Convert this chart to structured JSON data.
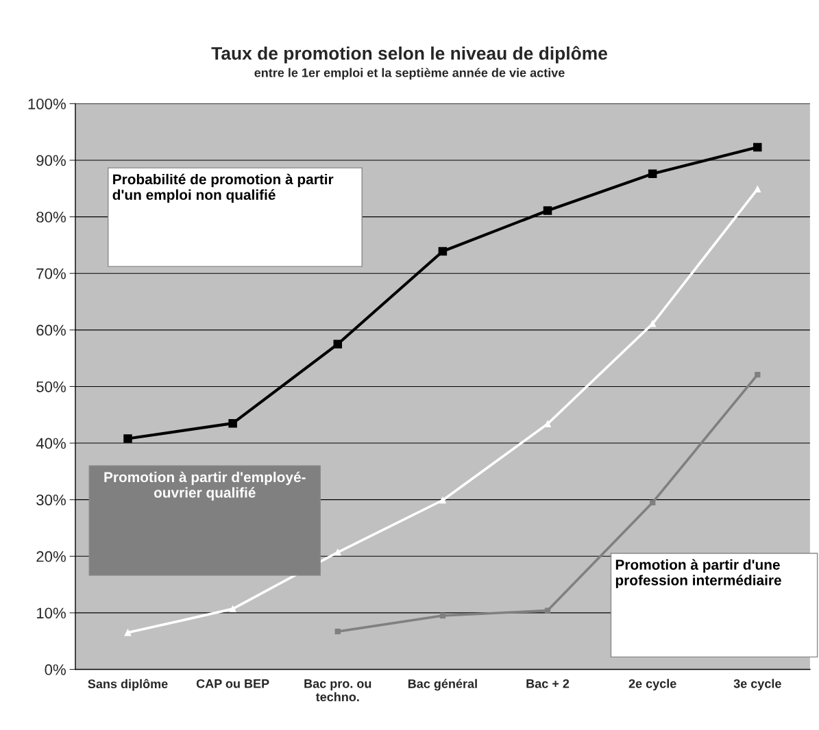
{
  "chart_data": {
    "type": "line",
    "title": "Taux de promotion selon le niveau de diplôme",
    "subtitle": "entre le 1er emploi et la septième année de vie active",
    "categories": [
      "Sans diplôme",
      "CAP ou BEP",
      "Bac pro. ou\ntechno.",
      "Bac général",
      "Bac + 2",
      "2e cycle",
      "3e cycle"
    ],
    "series": [
      {
        "color": "#000000",
        "marker": "square",
        "values": [
          40.8,
          43.5,
          57.5,
          73.9,
          81.1,
          87.6,
          92.3
        ]
      },
      {
        "color": "#ffffff",
        "marker": "triangle",
        "values": [
          6.5,
          10.7,
          20.7,
          29.9,
          43.4,
          61.1,
          84.9
        ]
      },
      {
        "color": "#808080",
        "marker": "square",
        "values": [
          null,
          null,
          6.7,
          9.5,
          10.4,
          29.5,
          52.1
        ]
      }
    ],
    "annotations": [
      "Probabilité de promotion à partir\nd'un emploi non qualifié",
      "Promotion à partir d'employé-\nouvrier qualifié",
      "Promotion à partir d'une\nprofession intermédiaire"
    ],
    "ylim": [
      0,
      100
    ],
    "yticks": [
      {
        "value": 0,
        "label": "0%"
      },
      {
        "value": 10,
        "label": "10%"
      },
      {
        "value": 20,
        "label": "20%"
      },
      {
        "value": 30,
        "label": "30%"
      },
      {
        "value": 40,
        "label": "40%"
      },
      {
        "value": 50,
        "label": "50%"
      },
      {
        "value": 60,
        "label": "60%"
      },
      {
        "value": 70,
        "label": "70%"
      },
      {
        "value": 80,
        "label": "80%"
      },
      {
        "value": 90,
        "label": "90%"
      },
      {
        "value": 100,
        "label": "100%"
      }
    ],
    "grid": "y",
    "legend": false,
    "line_style": "solid"
  }
}
